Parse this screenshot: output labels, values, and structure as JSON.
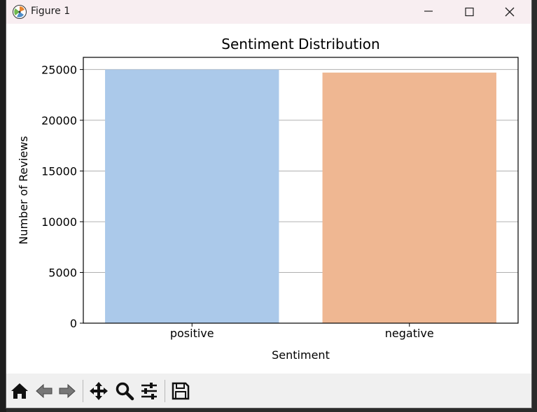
{
  "window": {
    "title": "Figure 1",
    "controls": {
      "minimize": "minimize",
      "maximize": "maximize",
      "close": "close"
    }
  },
  "toolbar": {
    "items": [
      "home-icon",
      "back-arrow-icon",
      "forward-arrow-icon",
      "pan-move-icon",
      "zoom-magnifier-icon",
      "configure-subplots-icon",
      "save-floppy-icon"
    ]
  },
  "chart_data": {
    "type": "bar",
    "title": "Sentiment Distribution",
    "xlabel": "Sentiment",
    "ylabel": "Number of Reviews",
    "categories": [
      "positive",
      "negative"
    ],
    "values": [
      25000,
      24700
    ],
    "colors": [
      "#abc9ea",
      "#efb792"
    ],
    "ylim": [
      0,
      26200
    ],
    "yticks": [
      0,
      5000,
      10000,
      15000,
      20000,
      25000
    ],
    "ytick_labels": [
      "0",
      "5000",
      "10000",
      "15000",
      "20000",
      "25000"
    ],
    "grid": "y-axis on",
    "legend": "none"
  }
}
